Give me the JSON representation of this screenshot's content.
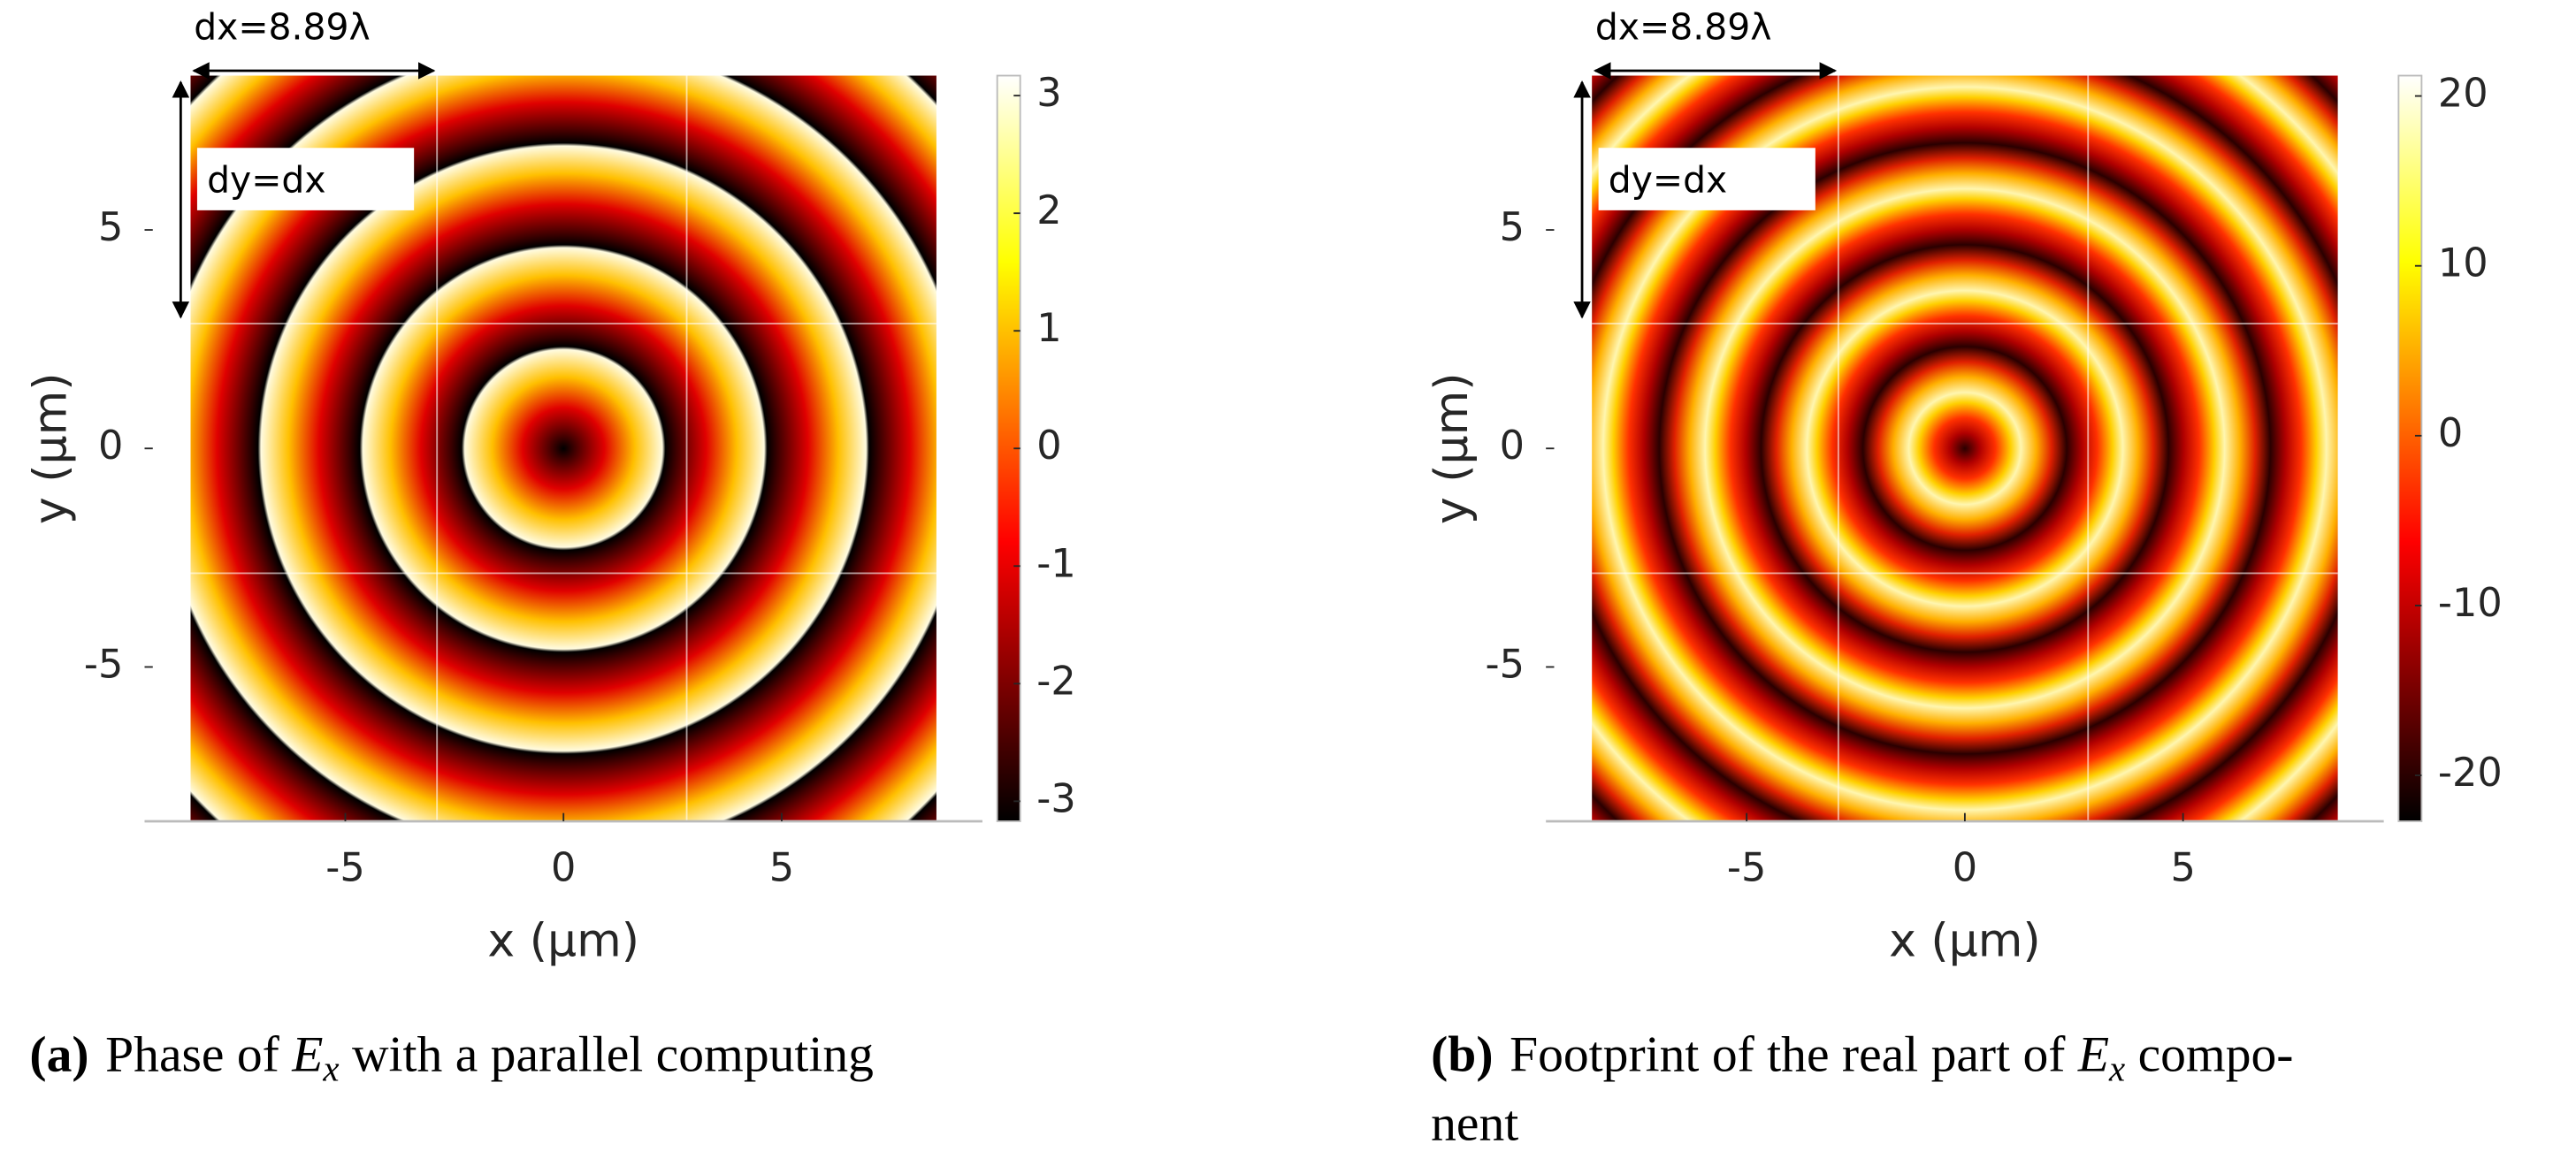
{
  "chart_data": [
    {
      "type": "heatmap",
      "xlabel": "x (μm)",
      "ylabel": "y (μm)",
      "xlim": [
        -9.6,
        9.6
      ],
      "ylim": [
        -8.53,
        8.53
      ],
      "xticks": [
        -5,
        0,
        5
      ],
      "yticks": [
        -5,
        0,
        5
      ],
      "colormap": "hot",
      "colorbar": {
        "lim": [
          -3.17,
          3.17
        ],
        "ticks": [
          -3,
          -2,
          -1,
          0,
          1,
          2,
          3
        ]
      },
      "annotations": [
        "dx=8.89λ",
        "dy=dx"
      ],
      "caption": {
        "label": "(a)",
        "text": "Phase of ",
        "math": "E",
        "sub": "x",
        "text2": " with a parallel computing"
      }
    },
    {
      "type": "heatmap",
      "xlabel": "x (μm)",
      "ylabel": "y (μm)",
      "xlim": [
        -9.6,
        9.6
      ],
      "ylim": [
        -8.53,
        8.53
      ],
      "xticks": [
        -5,
        0,
        5
      ],
      "yticks": [
        -5,
        0,
        5
      ],
      "colormap": "hot",
      "colorbar": {
        "lim": [
          -22.7,
          21.2
        ],
        "ticks": [
          -20,
          -10,
          0,
          10,
          20
        ]
      },
      "annotations": [
        "dx=8.89λ",
        "dy=dx"
      ],
      "caption": {
        "label": "(b)",
        "text": "Footprint of the real part of ",
        "math": "E",
        "sub": "x",
        "text2": " compo-",
        "line2": "nent"
      }
    }
  ]
}
